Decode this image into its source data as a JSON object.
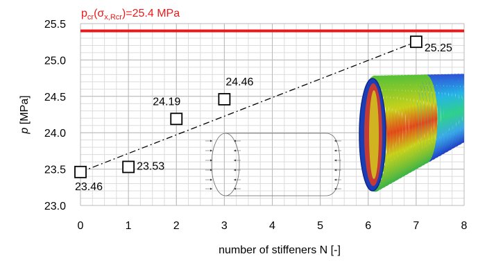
{
  "chart_data": {
    "type": "scatter",
    "title": "",
    "xlabel": "number of stiffeners N [-]",
    "ylabel_symbol": "p",
    "ylabel_unit": " [MPa]",
    "xlim": [
      0,
      8
    ],
    "ylim": [
      23.0,
      25.5
    ],
    "xticks": [
      "0",
      "1",
      "2",
      "3",
      "4",
      "5",
      "6",
      "7",
      "8"
    ],
    "yticks": [
      "23.0",
      "23.5",
      "24.0",
      "24.5",
      "25.0",
      "25.5"
    ],
    "grid": true,
    "series": [
      {
        "x": [
          0,
          1,
          2,
          3,
          7
        ],
        "y": [
          23.46,
          23.53,
          24.19,
          24.46,
          25.25
        ],
        "labels": [
          "23.46",
          "23.53",
          "24.19",
          "24.46",
          "25.25"
        ],
        "marker": "open-square",
        "color": "#000000"
      }
    ],
    "trendline": {
      "style": "dash-dot",
      "from": [
        0,
        23.46
      ],
      "to": [
        7,
        25.25
      ],
      "color": "#000000"
    },
    "reference_line": {
      "y": 25.4,
      "color": "#e8191a",
      "label_main": "p",
      "label_sub1": "cr",
      "label_mid": "(σ",
      "label_sub2": "x,Rcr",
      "label_end": ")=25.4 MPa"
    },
    "insets": [
      "cylinder-load-schematic",
      "buckled-stiffened-cylinder-render"
    ]
  }
}
